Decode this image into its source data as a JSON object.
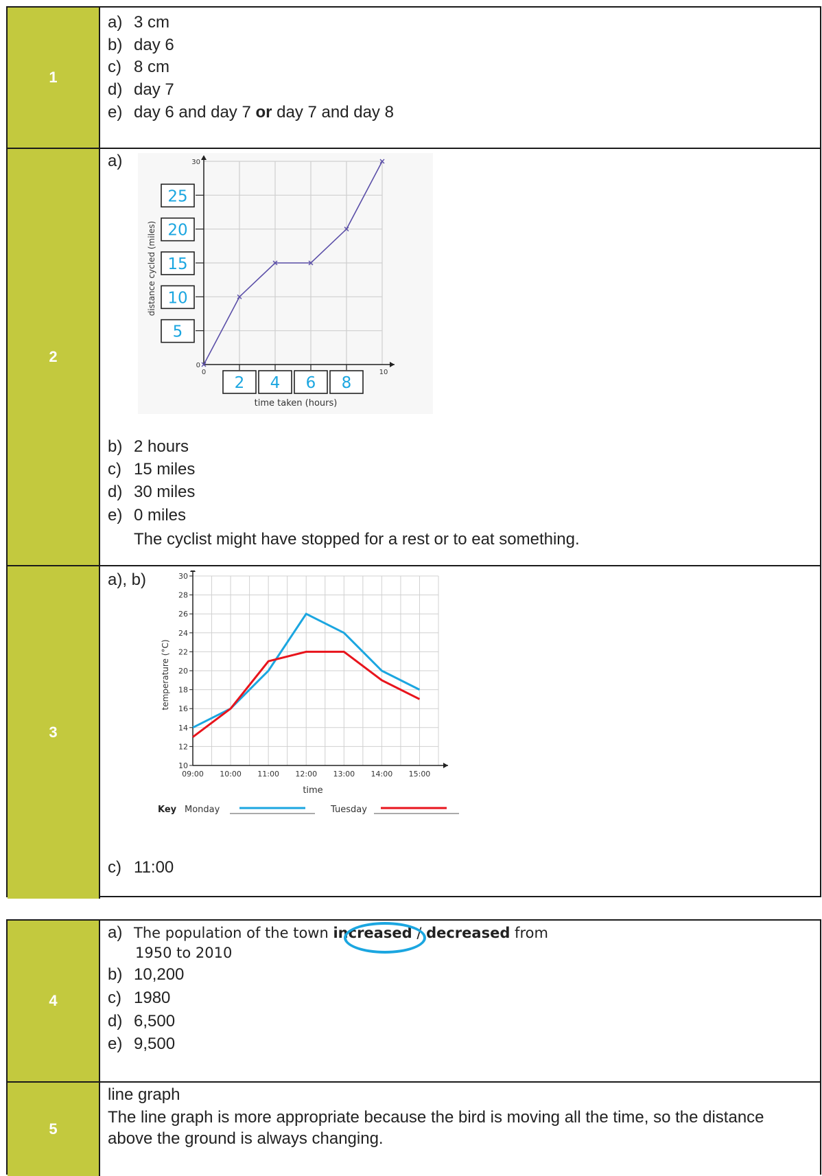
{
  "colors": {
    "number_column": "#c3c93e",
    "answer_blue": "#1ba6e0",
    "line_purple": "#5b4fa8",
    "monday": "#1ba6e0",
    "tuesday": "#e8141c"
  },
  "rows": [
    {
      "number": "1",
      "answers": [
        {
          "label": "a)",
          "text": "3 cm"
        },
        {
          "label": "b)",
          "text": "day 6"
        },
        {
          "label": "c)",
          "text": "8 cm"
        },
        {
          "label": "d)",
          "text": "day 7"
        },
        {
          "label": "e)",
          "text_a": "day 6 and day 7 ",
          "text_bold": "or",
          "text_b": " day 7 and day 8"
        }
      ]
    },
    {
      "number": "2",
      "part_a_label": "a)",
      "answers": [
        {
          "label": "b)",
          "text": "2 hours"
        },
        {
          "label": "c)",
          "text": "15 miles"
        },
        {
          "label": "d)",
          "text": "30 miles"
        },
        {
          "label": "e)",
          "text": "0 miles"
        }
      ],
      "explanation": "The cyclist might have stopped for a rest or to eat something."
    },
    {
      "number": "3",
      "part_ab_label": "a), b)",
      "answers": [
        {
          "label": "c)",
          "text": "11:00"
        }
      ],
      "key": {
        "title": "Key",
        "monday": "Monday",
        "tuesday": "Tuesday"
      }
    },
    {
      "number": "4",
      "answer_a": {
        "label": "a)",
        "text_1": "The population of the town",
        "option_1": "increased",
        "separator": "/",
        "option_2": "decreased",
        "text_2": "from",
        "text_3": "1950 to 2010"
      },
      "answers": [
        {
          "label": "b)",
          "text": "10,200"
        },
        {
          "label": "c)",
          "text": "1980"
        },
        {
          "label": "d)",
          "text": "6,500"
        },
        {
          "label": "e)",
          "text": "9,500"
        }
      ]
    },
    {
      "number": "5",
      "lines": [
        "line graph",
        "The line graph is more appropriate because the bird is moving all the time, so the distance",
        "above the ground is always changing."
      ]
    }
  ],
  "chart_data": [
    {
      "type": "line",
      "xlabel": "time taken (hours)",
      "ylabel": "distance cycled (miles)",
      "xlim": [
        0,
        10
      ],
      "ylim": [
        0,
        30
      ],
      "x_printed_ticks": [
        "0",
        "10"
      ],
      "y_printed_ticks": [
        "0",
        "30"
      ],
      "x_answer_labels": [
        "2",
        "4",
        "6",
        "8"
      ],
      "y_answer_labels": [
        "25",
        "20",
        "15",
        "10",
        "5"
      ],
      "grid": true,
      "marker": "x",
      "series": [
        {
          "x": [
            0,
            2,
            4,
            6,
            8,
            10
          ],
          "y": [
            0,
            10,
            15,
            15,
            20,
            30
          ]
        }
      ]
    },
    {
      "type": "line",
      "xlabel": "time",
      "ylabel": "temperature (°C)",
      "ylim": [
        10,
        30
      ],
      "categories": [
        "09:00",
        "10:00",
        "11:00",
        "12:00",
        "13:00",
        "14:00",
        "15:00"
      ],
      "y_ticks": [
        "10",
        "12",
        "14",
        "16",
        "18",
        "20",
        "22",
        "24",
        "26",
        "28",
        "30"
      ],
      "grid": true,
      "legend": "bottom",
      "series": [
        {
          "name": "Monday",
          "values": [
            14,
            16,
            20,
            26,
            24,
            20,
            18
          ]
        },
        {
          "name": "Tuesday",
          "values": [
            13,
            16,
            21,
            22,
            22,
            19,
            17
          ]
        }
      ]
    }
  ]
}
